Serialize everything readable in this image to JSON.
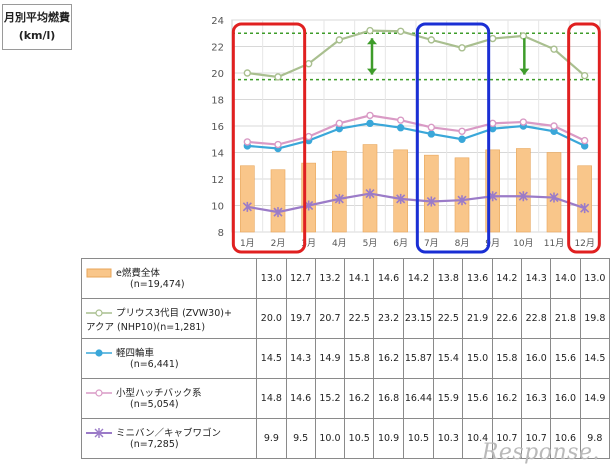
{
  "title": {
    "line1": "月別平均燃費",
    "line2": "(km/l)"
  },
  "watermark": "Response.",
  "colors": {
    "bars": "#f9c68a",
    "series_green": "#a9bf8f",
    "series_blue": "#3aa7d9",
    "series_pink": "#d99ac5",
    "series_purple": "#9b7bc8",
    "highlight_red": "#e02020",
    "highlight_blue": "#1a2fd4",
    "guide_green": "#3e9c2a"
  },
  "chart_data": {
    "type": "bar",
    "categories": [
      "1月",
      "2月",
      "3月",
      "4月",
      "5月",
      "6月",
      "7月",
      "8月",
      "9月",
      "10月",
      "11月",
      "12月"
    ],
    "ylim": [
      8,
      24
    ],
    "yticks": [
      "24",
      "22",
      "20",
      "18",
      "16",
      "14",
      "12",
      "10",
      "8"
    ],
    "grid": true,
    "series": [
      {
        "name": "e燃費全体",
        "kind": "bar",
        "count": "(n=19,474)",
        "values": [
          13.0,
          12.7,
          13.2,
          14.1,
          14.6,
          14.2,
          13.8,
          13.6,
          14.2,
          14.3,
          14.0,
          13.0
        ],
        "labels": [
          "13.0",
          "12.7",
          "13.2",
          "14.1",
          "14.6",
          "14.2",
          "13.8",
          "13.6",
          "14.2",
          "14.3",
          "14.0",
          "13.0"
        ]
      },
      {
        "name": "プリウス3代目 (ZVW30)+",
        "name2": "アクア (NHP10)(n=1,281)",
        "kind": "line",
        "values": [
          20.0,
          19.7,
          20.7,
          22.5,
          23.2,
          23.15,
          22.5,
          21.9,
          22.6,
          22.8,
          21.8,
          19.8
        ],
        "labels": [
          "20.0",
          "19.7",
          "20.7",
          "22.5",
          "23.2",
          "23.15",
          "22.5",
          "21.9",
          "22.6",
          "22.8",
          "21.8",
          "19.8"
        ]
      },
      {
        "name": "軽四輪車",
        "kind": "line",
        "count": "(n=6,441)",
        "values": [
          14.5,
          14.3,
          14.9,
          15.8,
          16.2,
          15.87,
          15.4,
          15.0,
          15.8,
          16.0,
          15.6,
          14.5
        ],
        "labels": [
          "14.5",
          "14.3",
          "14.9",
          "15.8",
          "16.2",
          "15.87",
          "15.4",
          "15.0",
          "15.8",
          "16.0",
          "15.6",
          "14.5"
        ]
      },
      {
        "name": "小型ハッチバック系",
        "kind": "line",
        "count": "(n=5,054)",
        "values": [
          14.8,
          14.6,
          15.2,
          16.2,
          16.8,
          16.44,
          15.9,
          15.6,
          16.2,
          16.3,
          16.0,
          14.9
        ],
        "labels": [
          "14.8",
          "14.6",
          "15.2",
          "16.2",
          "16.8",
          "16.44",
          "15.9",
          "15.6",
          "16.2",
          "16.3",
          "16.0",
          "14.9"
        ]
      },
      {
        "name": "ミニバン／キャブワゴン",
        "kind": "line",
        "count": "(n=7,285)",
        "values": [
          9.9,
          9.5,
          10.0,
          10.5,
          10.9,
          10.5,
          10.3,
          10.4,
          10.7,
          10.7,
          10.6,
          9.8
        ],
        "labels": [
          "9.9",
          "9.5",
          "10.0",
          "10.5",
          "10.9",
          "10.5",
          "10.3",
          "10.4",
          "10.7",
          "10.7",
          "10.6",
          "9.8"
        ]
      }
    ],
    "reference_lines": [
      23.0,
      19.5
    ]
  }
}
